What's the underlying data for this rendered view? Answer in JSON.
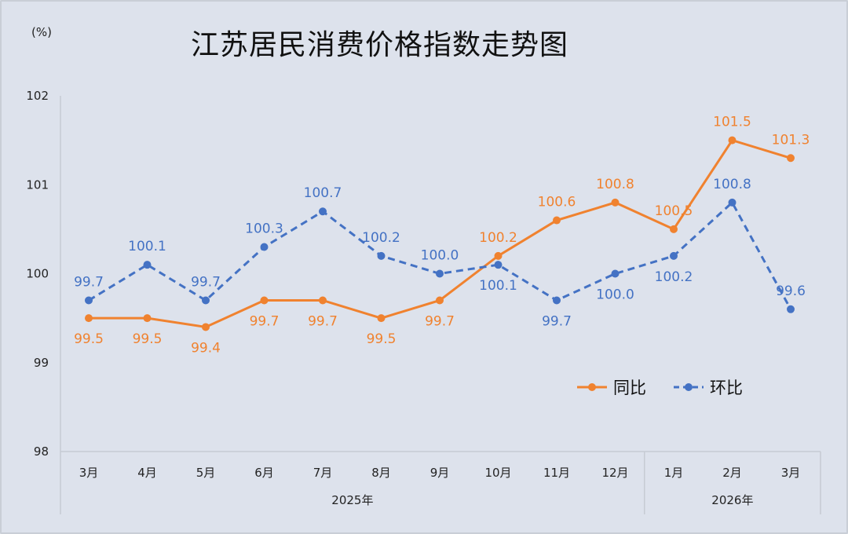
{
  "chart_data": {
    "type": "line",
    "title": "江苏居民消费价格指数走势图",
    "ylabel": "(%)",
    "ylim": [
      98,
      102
    ],
    "yticks": [
      "98",
      "99",
      "100",
      "101",
      "102"
    ],
    "categories": [
      "3月",
      "4月",
      "5月",
      "6月",
      "7月",
      "8月",
      "9月",
      "10月",
      "11月",
      "12月",
      "1月",
      "2月",
      "3月"
    ],
    "year_groups": [
      {
        "label": "2025年",
        "count": 10
      },
      {
        "label": "2026年",
        "count": 3
      }
    ],
    "legend_position": "lower-right",
    "grid": false,
    "series": [
      {
        "name": "同比",
        "color": "#f0822f",
        "dash": false,
        "values": [
          99.5,
          99.5,
          99.4,
          99.7,
          99.7,
          99.5,
          99.7,
          100.2,
          100.6,
          100.8,
          100.5,
          101.5,
          101.3
        ],
        "labels": [
          "99.5",
          "99.5",
          "99.4",
          "99.7",
          "99.7",
          "99.5",
          "99.7",
          "100.2",
          "100.6",
          "100.8",
          "100.5",
          "101.5",
          "101.3"
        ],
        "label_side": [
          "below",
          "below",
          "below",
          "below",
          "below",
          "below",
          "below",
          "above",
          "above",
          "above",
          "above",
          "above",
          "above"
        ]
      },
      {
        "name": "环比",
        "color": "#4472c4",
        "dash": true,
        "values": [
          99.7,
          100.1,
          99.7,
          100.3,
          100.7,
          100.2,
          100.0,
          100.1,
          99.7,
          100.0,
          100.2,
          100.8,
          99.6
        ],
        "labels": [
          "99.7",
          "100.1",
          "99.7",
          "100.3",
          "100.7",
          "100.2",
          "100.0",
          "100.1",
          "99.7",
          "100.0",
          "100.2",
          "100.8",
          "99.6"
        ],
        "label_side": [
          "above",
          "above",
          "above",
          "above",
          "above",
          "above",
          "above",
          "below",
          "below",
          "below",
          "below",
          "above",
          "above"
        ]
      }
    ]
  }
}
